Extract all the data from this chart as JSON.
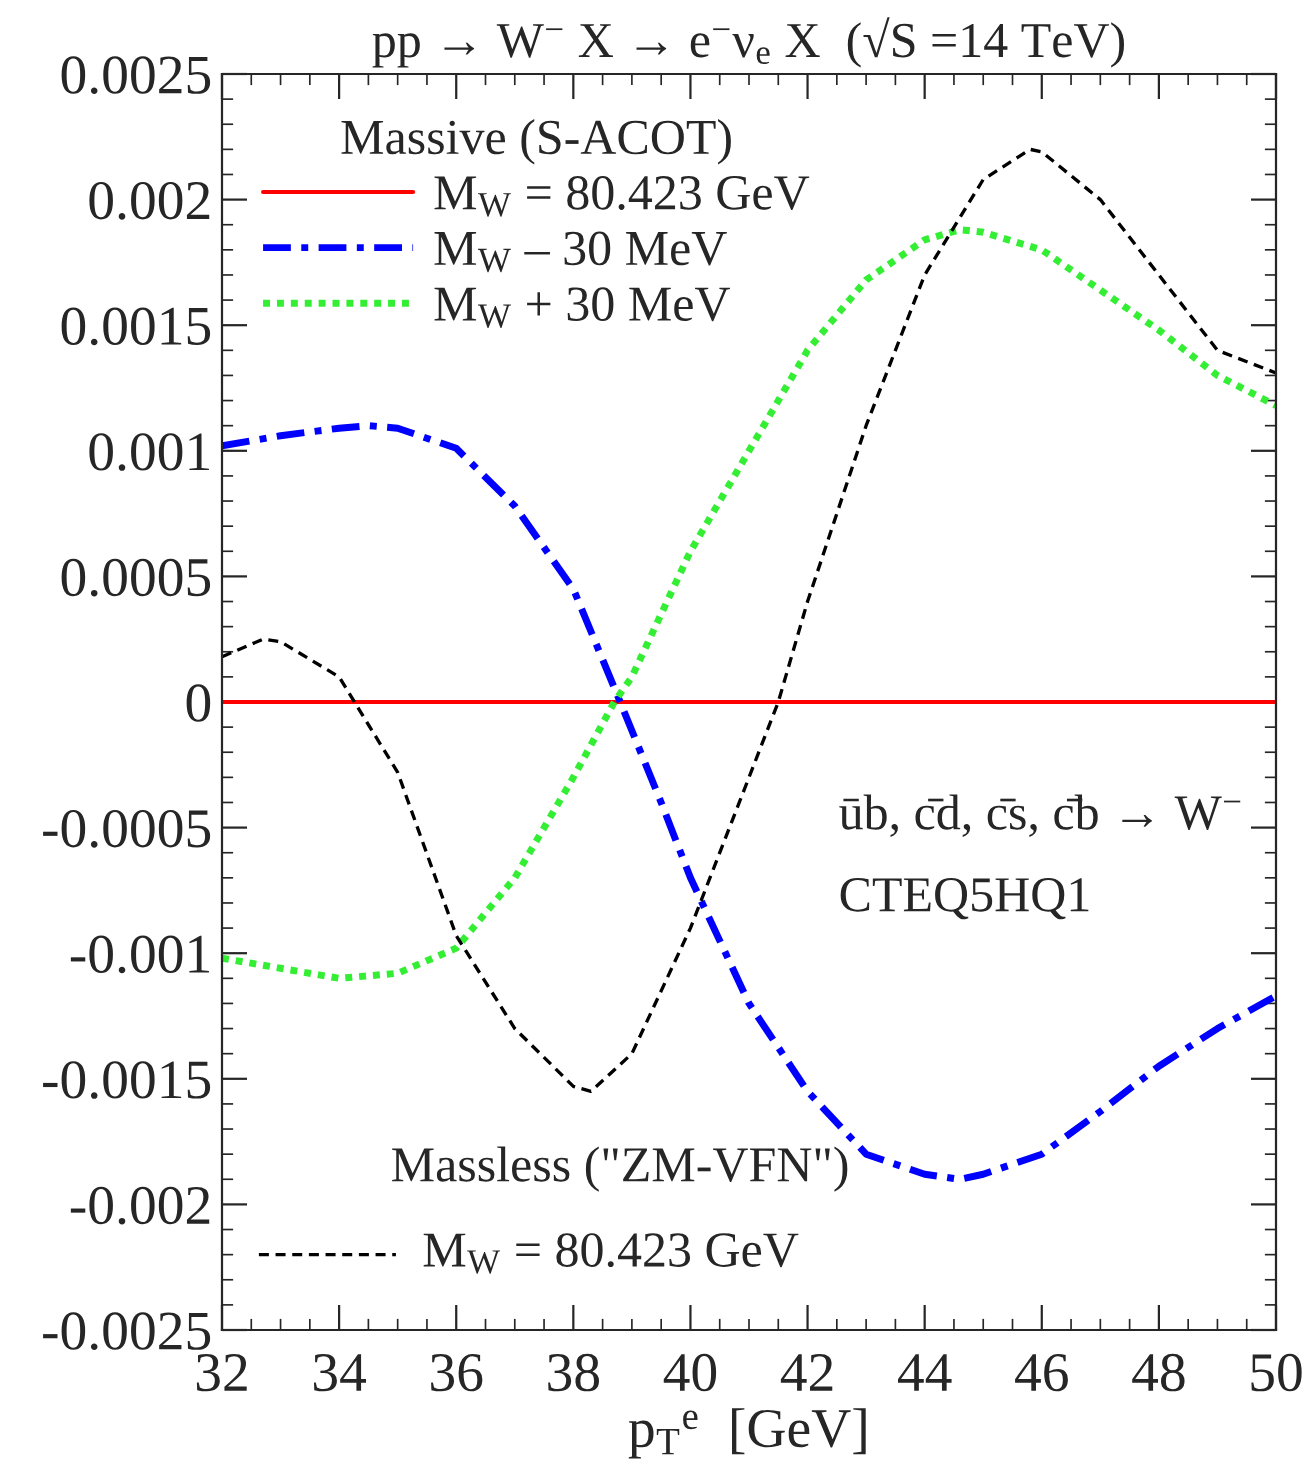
{
  "chart_data": {
    "type": "line",
    "title": "pp → W$^{−}$ X → e$^{−}$ν$_{e}$ X  (√S =14 TeV)",
    "xlabel": "p$_{T}$$^{e}$  [GeV]",
    "legend_title": "Massive (S-ACOT)",
    "annotations": [
      "Massless (\"ZM-VFN\")",
      "ūb, c̄d, c̄s, c̄b → W$^{−}$",
      "CTEQ5HQ1"
    ],
    "xlim": [
      32,
      50
    ],
    "xticks": [
      32,
      34,
      36,
      38,
      40,
      42,
      44,
      46,
      48,
      50
    ],
    "ylim": [
      -0.0025,
      0.0025
    ],
    "yticks": [
      -0.0025,
      -0.002,
      -0.0015,
      -0.001,
      -0.0005,
      0,
      0.0005,
      0.001,
      0.0015,
      0.002,
      0.0025
    ],
    "legend": "left",
    "grid": false,
    "series": [
      {
        "name": "M$_{W}$ = 80.423 GeV",
        "color": "#ff0000",
        "line_style": "solid",
        "x": [
          32,
          50
        ],
        "values": [
          0,
          0
        ]
      },
      {
        "name": "M$_{W}$ – 30 MeV",
        "color": "#0000ff",
        "line_style": "dashdot",
        "x": [
          32,
          33,
          34,
          34.5,
          35,
          36,
          37,
          38,
          38.8,
          39.5,
          40,
          41,
          42,
          43,
          44,
          44.6,
          45,
          46,
          47,
          48,
          49,
          50
        ],
        "values": [
          0.00102,
          0.00106,
          0.00109,
          0.0011,
          0.00109,
          0.00101,
          0.00078,
          0.00045,
          0.0,
          -0.0004,
          -0.0007,
          -0.0012,
          -0.00155,
          -0.0018,
          -0.00188,
          -0.0019,
          -0.00188,
          -0.0018,
          -0.00163,
          -0.00145,
          -0.0013,
          -0.00117
        ]
      },
      {
        "name": "M$_{W}$ + 30 MeV",
        "color": "#33ee33",
        "line_style": "dotted",
        "x": [
          32,
          33,
          34,
          35,
          36,
          37,
          38,
          38.7,
          39,
          40,
          41,
          42,
          43,
          44,
          44.6,
          45,
          46,
          47,
          48,
          49,
          50
        ],
        "values": [
          -0.00102,
          -0.00106,
          -0.0011,
          -0.00108,
          -0.00098,
          -0.0007,
          -0.0003,
          0.0,
          0.0001,
          0.0006,
          0.001,
          0.0014,
          0.00168,
          0.00184,
          0.00188,
          0.00187,
          0.0018,
          0.00164,
          0.00148,
          0.0013,
          0.00118
        ]
      },
      {
        "name": "M$_{W}$ = 80.423 GeV",
        "color": "#000000",
        "line_style": "dashed",
        "x": [
          32,
          32.7,
          33,
          34,
          35,
          36,
          37,
          38,
          38.3,
          39,
          40,
          41,
          41.5,
          42,
          43,
          44,
          45,
          45.8,
          46,
          47,
          48,
          49,
          50
        ],
        "values": [
          0.00018,
          0.00025,
          0.00024,
          0.0001,
          -0.00028,
          -0.00093,
          -0.0013,
          -0.00153,
          -0.00155,
          -0.0014,
          -0.0009,
          -0.0003,
          0.0,
          0.0004,
          0.0011,
          0.0017,
          0.00208,
          0.0022,
          0.00219,
          0.002,
          0.0017,
          0.0014,
          0.00131
        ]
      }
    ]
  }
}
